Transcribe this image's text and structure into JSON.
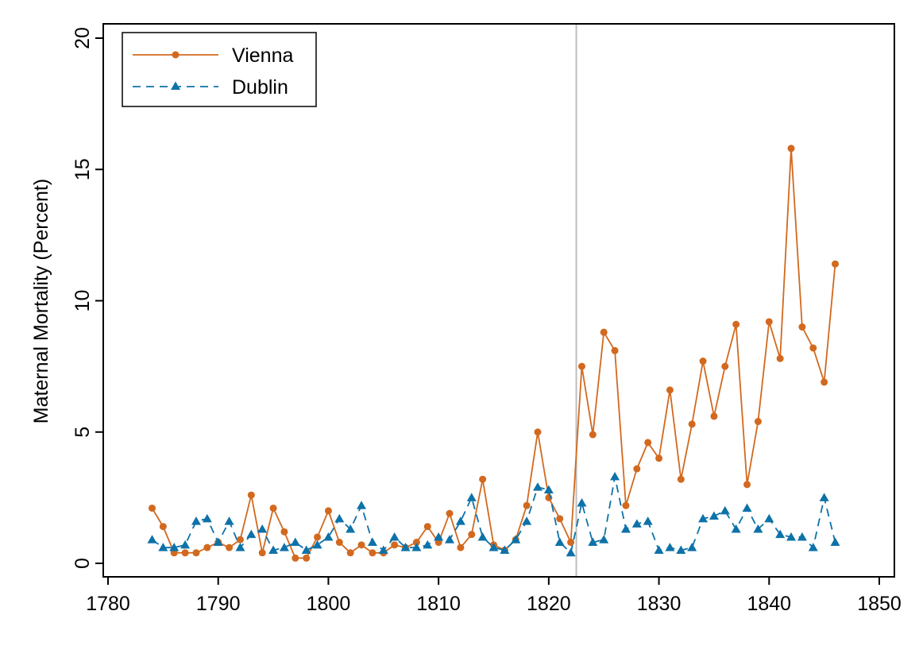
{
  "chart_data": {
    "type": "line",
    "title": "",
    "xlabel": "",
    "ylabel": "Maternal Mortality (Percent)",
    "xlim": [
      1780,
      1850
    ],
    "ylim": [
      0,
      20
    ],
    "xticks": [
      1780,
      1790,
      1800,
      1810,
      1820,
      1830,
      1840,
      1850
    ],
    "yticks": [
      0,
      5,
      10,
      15,
      20
    ],
    "grid": false,
    "legend_position": "top-left",
    "reference_line_x": 1822.5,
    "reference_line_color": "#bdbdbd",
    "series": [
      {
        "name": "Vienna",
        "color": "#d2691e",
        "marker": "circle",
        "line_style": "solid",
        "x": [
          1784,
          1785,
          1786,
          1787,
          1788,
          1789,
          1790,
          1791,
          1792,
          1793,
          1794,
          1795,
          1796,
          1797,
          1798,
          1799,
          1800,
          1801,
          1802,
          1803,
          1804,
          1805,
          1806,
          1807,
          1808,
          1809,
          1810,
          1811,
          1812,
          1813,
          1814,
          1815,
          1816,
          1817,
          1818,
          1819,
          1820,
          1821,
          1822,
          1823,
          1824,
          1825,
          1826,
          1827,
          1828,
          1829,
          1830,
          1831,
          1832,
          1833,
          1834,
          1835,
          1836,
          1837,
          1838,
          1839,
          1840,
          1841,
          1842,
          1843,
          1844,
          1845,
          1846
        ],
        "values": [
          2.1,
          1.4,
          0.4,
          0.4,
          0.4,
          0.6,
          0.8,
          0.6,
          0.9,
          2.6,
          0.4,
          2.1,
          1.2,
          0.2,
          0.2,
          1.0,
          2.0,
          0.8,
          0.4,
          0.7,
          0.4,
          0.4,
          0.7,
          0.6,
          0.8,
          1.4,
          0.8,
          1.9,
          0.6,
          1.1,
          3.2,
          0.7,
          0.5,
          0.9,
          2.2,
          5.0,
          2.5,
          1.7,
          0.8,
          7.5,
          4.9,
          8.8,
          8.1,
          2.2,
          3.6,
          4.6,
          4.0,
          6.6,
          3.2,
          5.3,
          7.7,
          5.6,
          7.5,
          9.1,
          3.0,
          5.4,
          9.2,
          7.8,
          15.8,
          9.0,
          8.2,
          6.9,
          11.4
        ]
      },
      {
        "name": "Dublin",
        "color": "#0d72a8",
        "marker": "triangle",
        "line_style": "dashed",
        "x": [
          1784,
          1785,
          1786,
          1787,
          1788,
          1789,
          1790,
          1791,
          1792,
          1793,
          1794,
          1795,
          1796,
          1797,
          1798,
          1799,
          1800,
          1801,
          1802,
          1803,
          1804,
          1805,
          1806,
          1807,
          1808,
          1809,
          1810,
          1811,
          1812,
          1813,
          1814,
          1815,
          1816,
          1817,
          1818,
          1819,
          1820,
          1821,
          1822,
          1823,
          1824,
          1825,
          1826,
          1827,
          1828,
          1829,
          1830,
          1831,
          1832,
          1833,
          1834,
          1835,
          1836,
          1837,
          1838,
          1839,
          1840,
          1841,
          1842,
          1843,
          1844,
          1845,
          1846
        ],
        "values": [
          0.9,
          0.6,
          0.6,
          0.7,
          1.6,
          1.7,
          0.8,
          1.6,
          0.6,
          1.1,
          1.3,
          0.5,
          0.6,
          0.8,
          0.5,
          0.7,
          1.0,
          1.7,
          1.3,
          2.2,
          0.8,
          0.5,
          1.0,
          0.6,
          0.6,
          0.7,
          1.0,
          0.9,
          1.6,
          2.5,
          1.0,
          0.6,
          0.5,
          0.9,
          1.6,
          2.9,
          2.8,
          0.8,
          0.4,
          2.3,
          0.8,
          0.9,
          3.3,
          1.3,
          1.5,
          1.6,
          0.5,
          0.6,
          0.5,
          0.6,
          1.7,
          1.8,
          2.0,
          1.3,
          2.1,
          1.3,
          1.7,
          1.1,
          1.0,
          1.0,
          0.6,
          2.5,
          0.8
        ]
      }
    ]
  }
}
